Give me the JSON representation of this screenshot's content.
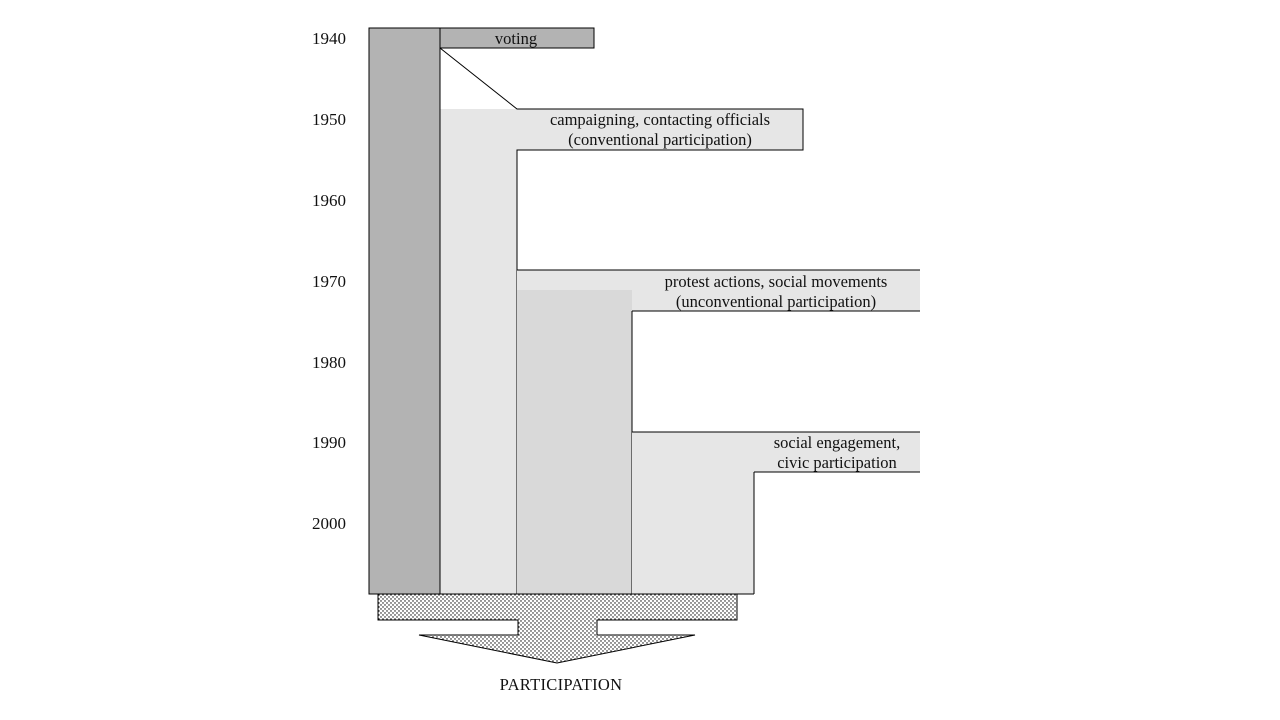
{
  "years": [
    "1940",
    "1950",
    "1960",
    "1970",
    "1980",
    "1990",
    "2000"
  ],
  "labels": {
    "voting": "voting",
    "conventional_line1": "campaigning, contacting officials",
    "conventional_line2": "(conventional participation)",
    "unconventional_line1": "protest actions, social movements",
    "unconventional_line2": "(unconventional participation)",
    "civic_line1": "social engagement,",
    "civic_line2": "civic participation"
  },
  "footer": {
    "participation_label": "PARTICIPATION"
  },
  "colors": {
    "dark_column": "#b3b3b3",
    "light_fill": "#e6e6e6",
    "mid_fill": "#d9d9d9",
    "outline": "#000000"
  }
}
